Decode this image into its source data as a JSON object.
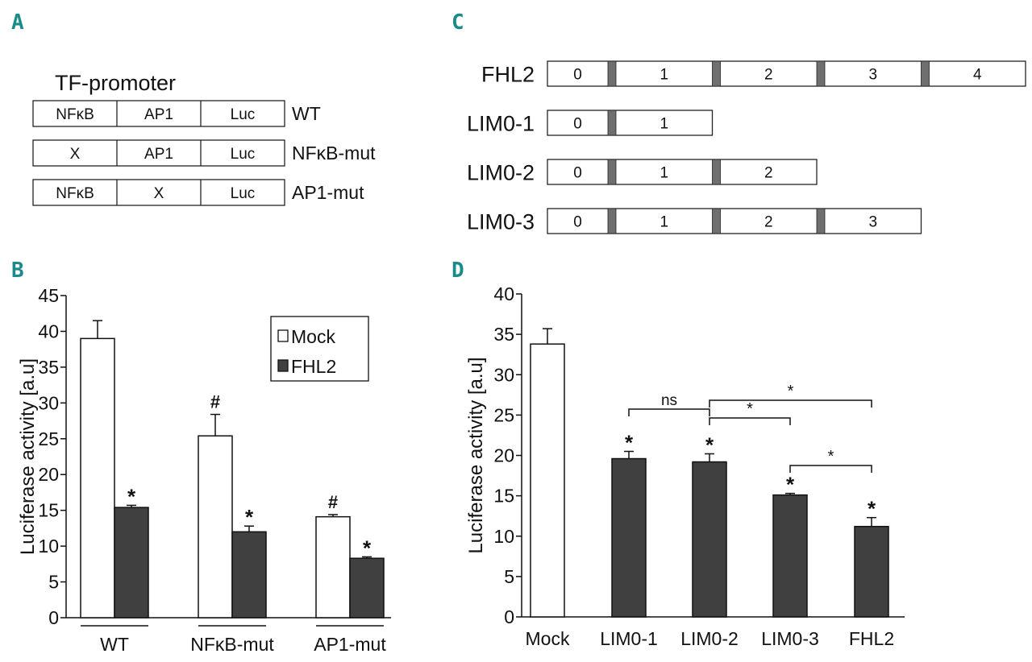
{
  "panels": {
    "A": {
      "letter": "A",
      "title": "TF-promoter",
      "constructs": [
        {
          "segments": [
            "NFκB",
            "AP1",
            "Luc"
          ],
          "label": "WT"
        },
        {
          "segments": [
            "X",
            "AP1",
            "Luc"
          ],
          "label": "NFκB-mut"
        },
        {
          "segments": [
            "NFκB",
            "X",
            "Luc"
          ],
          "label": "AP1-mut"
        }
      ]
    },
    "B": {
      "letter": "B",
      "chart_data": {
        "type": "bar",
        "ylabel": "Luciferase activity [a.u]",
        "ylim": [
          0,
          45
        ],
        "yticks": [
          0,
          5,
          10,
          15,
          20,
          25,
          30,
          35,
          40,
          45
        ],
        "categories": [
          "WT",
          "NFκB-mut",
          "AP1-mut"
        ],
        "series": [
          {
            "name": "Mock",
            "color": "#ffffff",
            "values": [
              39.0,
              25.4,
              14.1
            ],
            "errors": [
              2.5,
              3.0,
              0.3
            ],
            "marks": [
              "",
              "#",
              "#"
            ]
          },
          {
            "name": "FHL2",
            "color": "#404040",
            "values": [
              15.4,
              12.0,
              8.3
            ],
            "errors": [
              0.3,
              0.8,
              0.2
            ],
            "marks": [
              "*",
              "*",
              "*"
            ]
          }
        ],
        "legend_position": "top-right"
      }
    },
    "C": {
      "letter": "C",
      "constructs": [
        {
          "name": "FHL2",
          "domains": [
            "0",
            "1",
            "2",
            "3",
            "4"
          ]
        },
        {
          "name": "LIM0-1",
          "domains": [
            "0",
            "1"
          ]
        },
        {
          "name": "LIM0-2",
          "domains": [
            "0",
            "1",
            "2"
          ]
        },
        {
          "name": "LIM0-3",
          "domains": [
            "0",
            "1",
            "2",
            "3"
          ]
        }
      ]
    },
    "D": {
      "letter": "D",
      "chart_data": {
        "type": "bar",
        "ylabel": "Luciferase activity [a.u]",
        "ylim": [
          0,
          40
        ],
        "yticks": [
          0,
          5,
          10,
          15,
          20,
          25,
          30,
          35,
          40
        ],
        "categories": [
          "Mock",
          "LIM0-1",
          "LIM0-2",
          "LIM0-3",
          "FHL2"
        ],
        "values": [
          33.8,
          19.6,
          19.2,
          15.1,
          11.2
        ],
        "errors": [
          1.9,
          0.9,
          1.0,
          0.2,
          1.1
        ],
        "colors": [
          "#ffffff",
          "#404040",
          "#404040",
          "#404040",
          "#404040"
        ],
        "marks": [
          "",
          "*",
          "*",
          "*",
          "*"
        ],
        "brackets": [
          {
            "from": 1,
            "to": 2,
            "label": "ns"
          },
          {
            "from": 2,
            "to": 4,
            "label": "*"
          },
          {
            "from": 2,
            "to": 3,
            "label": "*"
          },
          {
            "from": 3,
            "to": 4,
            "label": "*"
          }
        ]
      }
    }
  }
}
